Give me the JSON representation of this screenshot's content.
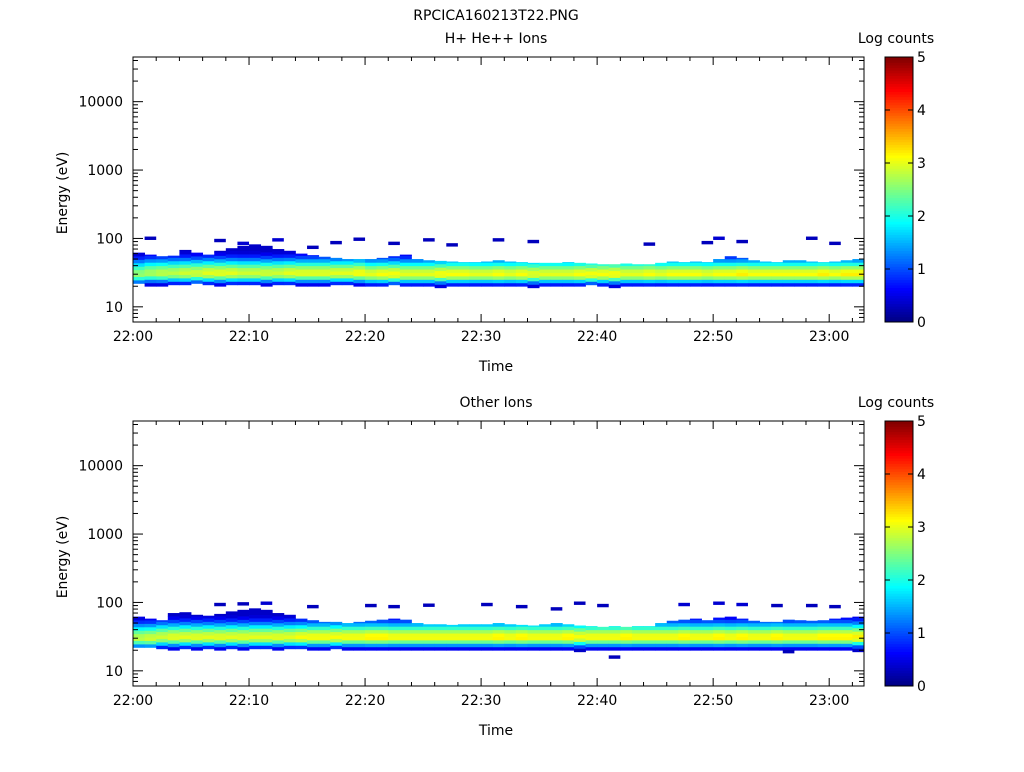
{
  "title": "RPCICA160213T22.PNG",
  "colorbar": {
    "label": "Log counts",
    "ticks": [
      "0",
      "1",
      "2",
      "3",
      "4",
      "5"
    ],
    "range": [
      0,
      5
    ],
    "colormap": [
      "#00007f",
      "#0000ff",
      "#007fff",
      "#00ffff",
      "#7fff7f",
      "#ffff00",
      "#ff7f00",
      "#ff0000",
      "#7f0000"
    ]
  },
  "chart_data": [
    {
      "type": "heatmap",
      "title": "H+ He++ Ions",
      "xlabel": "Time",
      "ylabel": "Energy (eV)",
      "x_ticks": [
        "22:00",
        "22:10",
        "22:20",
        "22:30",
        "22:40",
        "22:50",
        "23:00"
      ],
      "xlim": [
        "22:00",
        "23:03"
      ],
      "y_ticks": [
        "10",
        "100",
        "1000",
        "10000"
      ],
      "ylim": [
        6,
        45000
      ],
      "yscale": "log",
      "time_bin_minutes": 1,
      "band": {
        "lower_edge_eV": [
          22,
          20,
          20,
          21,
          21,
          22,
          21,
          20,
          21,
          21,
          21,
          20,
          21,
          21,
          20,
          20,
          20,
          21,
          21,
          20,
          20,
          20,
          21,
          20,
          20,
          20,
          19,
          20,
          20,
          20,
          20,
          20,
          20,
          20,
          19,
          20,
          20,
          20,
          20,
          21,
          20,
          19,
          20,
          20,
          20,
          20,
          20,
          20,
          20,
          20,
          20,
          20,
          20,
          20,
          20,
          20,
          20,
          20,
          20,
          20,
          20,
          20,
          20
        ],
        "peak_eV": [
          30,
          31,
          31,
          31,
          31,
          31,
          31,
          31,
          31,
          31,
          31,
          31,
          31,
          31,
          31,
          31,
          31,
          31,
          31,
          31,
          30,
          30,
          30,
          30,
          30,
          30,
          30,
          30,
          30,
          30,
          30,
          30,
          30,
          30,
          30,
          30,
          30,
          30,
          30,
          30,
          30,
          30,
          30,
          30,
          30,
          30,
          30,
          30,
          30,
          30,
          30,
          30,
          30,
          30,
          30,
          30,
          30,
          30,
          30,
          30,
          30,
          30,
          30
        ],
        "upper_edge_eV": [
          62,
          58,
          55,
          56,
          68,
          62,
          58,
          66,
          72,
          78,
          82,
          78,
          70,
          66,
          60,
          57,
          54,
          52,
          50,
          50,
          50,
          52,
          55,
          58,
          50,
          48,
          47,
          46,
          45,
          45,
          46,
          48,
          46,
          45,
          44,
          44,
          44,
          45,
          44,
          43,
          42,
          42,
          43,
          42,
          42,
          44,
          46,
          45,
          46,
          45,
          50,
          55,
          52,
          48,
          46,
          45,
          48,
          48,
          46,
          45,
          46,
          48,
          50
        ],
        "peak_log_counts": [
          2.6,
          2.7,
          2.8,
          2.8,
          2.9,
          2.9,
          3.0,
          3.0,
          3.0,
          2.9,
          2.9,
          2.9,
          2.9,
          3.0,
          3.0,
          3.0,
          3.0,
          3.0,
          3.0,
          3.1,
          3.0,
          3.1,
          3.1,
          3.0,
          3.0,
          3.0,
          3.1,
          3.1,
          3.1,
          3.0,
          3.0,
          3.1,
          3.0,
          3.1,
          3.0,
          3.0,
          3.0,
          3.0,
          3.1,
          3.1,
          3.1,
          3.1,
          3.0,
          3.0,
          3.1,
          3.0,
          3.1,
          3.1,
          3.1,
          3.0,
          3.1,
          3.1,
          3.2,
          3.1,
          3.1,
          3.1,
          3.1,
          3.1,
          3.1,
          3.2,
          3.1,
          3.2,
          3.2
        ]
      },
      "sparse_hits": [
        {
          "t": 1,
          "e": 95,
          "v": 0.3
        },
        {
          "t": 7,
          "e": 88,
          "v": 0.3
        },
        {
          "t": 9,
          "e": 80,
          "v": 0.4
        },
        {
          "t": 12,
          "e": 90,
          "v": 0.4
        },
        {
          "t": 15,
          "e": 70,
          "v": 0.3
        },
        {
          "t": 17,
          "e": 82,
          "v": 0.3
        },
        {
          "t": 19,
          "e": 92,
          "v": 0.3
        },
        {
          "t": 22,
          "e": 80,
          "v": 0.3
        },
        {
          "t": 25,
          "e": 90,
          "v": 0.3
        },
        {
          "t": 27,
          "e": 76,
          "v": 0.3
        },
        {
          "t": 31,
          "e": 90,
          "v": 0.3
        },
        {
          "t": 34,
          "e": 85,
          "v": 0.3
        },
        {
          "t": 44,
          "e": 78,
          "v": 0.3
        },
        {
          "t": 49,
          "e": 82,
          "v": 0.3
        },
        {
          "t": 50,
          "e": 95,
          "v": 0.4
        },
        {
          "t": 52,
          "e": 85,
          "v": 0.3
        },
        {
          "t": 58,
          "e": 95,
          "v": 0.3
        },
        {
          "t": 60,
          "e": 80,
          "v": 0.3
        }
      ]
    },
    {
      "type": "heatmap",
      "title": "Other Ions",
      "xlabel": "Time",
      "ylabel": "Energy (eV)",
      "x_ticks": [
        "22:00",
        "22:10",
        "22:20",
        "22:30",
        "22:40",
        "22:50",
        "23:00"
      ],
      "xlim": [
        "22:00",
        "23:03"
      ],
      "y_ticks": [
        "10",
        "100",
        "1000",
        "10000"
      ],
      "ylim": [
        6,
        45000
      ],
      "yscale": "log",
      "time_bin_minutes": 1,
      "band": {
        "lower_edge_eV": [
          22,
          22,
          21,
          20,
          21,
          20,
          21,
          20,
          21,
          20,
          21,
          21,
          20,
          21,
          21,
          20,
          20,
          21,
          20,
          20,
          20,
          20,
          20,
          20,
          20,
          20,
          20,
          20,
          20,
          20,
          20,
          20,
          20,
          20,
          20,
          20,
          20,
          20,
          19,
          20,
          20,
          20,
          20,
          20,
          20,
          20,
          20,
          20,
          20,
          20,
          20,
          20,
          20,
          20,
          20,
          20,
          20,
          20,
          20,
          20,
          20,
          20,
          19
        ],
        "peak_eV": [
          30,
          30,
          31,
          31,
          31,
          31,
          31,
          31,
          31,
          31,
          31,
          31,
          31,
          31,
          31,
          31,
          31,
          31,
          31,
          31,
          31,
          31,
          31,
          31,
          31,
          31,
          31,
          31,
          31,
          31,
          31,
          31,
          31,
          31,
          31,
          31,
          31,
          31,
          31,
          31,
          31,
          31,
          31,
          31,
          31,
          31,
          31,
          31,
          31,
          31,
          31,
          31,
          31,
          31,
          31,
          31,
          31,
          31,
          31,
          31,
          31,
          31,
          31
        ],
        "upper_edge_eV": [
          62,
          58,
          55,
          70,
          72,
          66,
          64,
          68,
          74,
          78,
          82,
          78,
          70,
          66,
          58,
          55,
          52,
          52,
          50,
          52,
          54,
          56,
          58,
          56,
          50,
          48,
          48,
          47,
          48,
          48,
          48,
          50,
          48,
          47,
          46,
          48,
          50,
          48,
          46,
          45,
          44,
          45,
          44,
          45,
          45,
          50,
          54,
          56,
          58,
          55,
          60,
          62,
          58,
          54,
          52,
          52,
          56,
          55,
          54,
          55,
          58,
          60,
          62
        ],
        "peak_log_counts": [
          2.8,
          2.9,
          2.9,
          3.0,
          3.0,
          3.0,
          3.0,
          3.0,
          3.0,
          3.0,
          3.0,
          3.0,
          3.0,
          3.0,
          3.1,
          3.1,
          3.1,
          3.1,
          3.1,
          3.1,
          3.2,
          3.2,
          3.1,
          3.1,
          3.1,
          3.1,
          3.1,
          3.1,
          3.1,
          3.1,
          3.1,
          3.2,
          3.1,
          3.2,
          3.1,
          3.1,
          3.1,
          3.2,
          3.1,
          3.1,
          3.1,
          3.1,
          3.2,
          3.1,
          3.1,
          3.1,
          3.1,
          3.2,
          3.1,
          3.1,
          3.2,
          3.1,
          3.2,
          3.1,
          3.1,
          3.2,
          3.1,
          3.1,
          3.1,
          3.2,
          3.2,
          3.2,
          3.2
        ]
      },
      "sparse_hits": [
        {
          "t": 7,
          "e": 88,
          "v": 0.3
        },
        {
          "t": 9,
          "e": 90,
          "v": 0.3
        },
        {
          "t": 11,
          "e": 92,
          "v": 0.4
        },
        {
          "t": 15,
          "e": 82,
          "v": 0.3
        },
        {
          "t": 20,
          "e": 85,
          "v": 0.3
        },
        {
          "t": 22,
          "e": 82,
          "v": 0.3
        },
        {
          "t": 25,
          "e": 86,
          "v": 0.3
        },
        {
          "t": 30,
          "e": 88,
          "v": 0.3
        },
        {
          "t": 33,
          "e": 82,
          "v": 0.3
        },
        {
          "t": 36,
          "e": 76,
          "v": 0.3
        },
        {
          "t": 38,
          "e": 92,
          "v": 0.3
        },
        {
          "t": 40,
          "e": 85,
          "v": 0.3
        },
        {
          "t": 47,
          "e": 88,
          "v": 0.4
        },
        {
          "t": 50,
          "e": 92,
          "v": 0.4
        },
        {
          "t": 52,
          "e": 88,
          "v": 0.4
        },
        {
          "t": 55,
          "e": 85,
          "v": 0.3
        },
        {
          "t": 58,
          "e": 85,
          "v": 0.3
        },
        {
          "t": 60,
          "e": 82,
          "v": 0.3
        },
        {
          "t": 41,
          "e": 15,
          "v": 0.3
        },
        {
          "t": 56,
          "e": 18,
          "v": 0.3
        }
      ]
    }
  ]
}
